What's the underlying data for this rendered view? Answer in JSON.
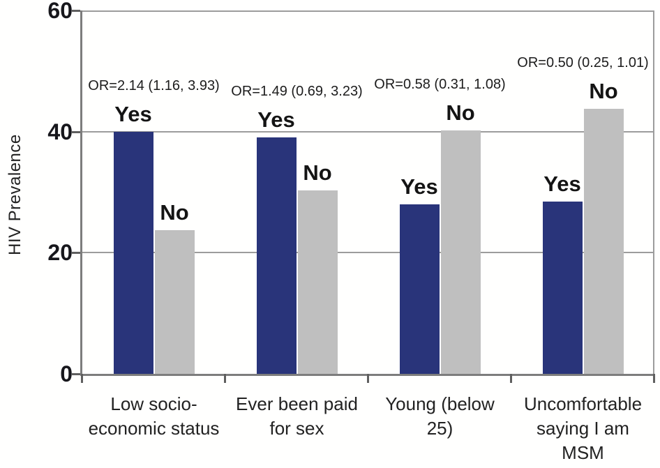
{
  "chart_data": {
    "type": "bar",
    "title": "",
    "xlabel": "",
    "ylabel": "HIV Prevalence",
    "ylim": [
      0,
      60
    ],
    "yticks": [
      0,
      20,
      40,
      60
    ],
    "ytick_labels": [
      "0",
      "20",
      "40",
      "60"
    ],
    "grid": true,
    "legend_position": "none",
    "bar_group_labels": [
      "Yes",
      "No"
    ],
    "categories": [
      "Low socio-economic status",
      "Ever been paid for sex",
      "Young (below 25)",
      "Uncomfortable saying I am MSM"
    ],
    "category_label_lines": [
      [
        "Low socio-",
        "economic status"
      ],
      [
        "Ever been paid",
        "for sex"
      ],
      [
        "Young (below",
        "25)"
      ],
      [
        "Uncomfortable",
        "saying I am",
        "MSM"
      ]
    ],
    "series": [
      {
        "name": "Yes",
        "color": "#29347a",
        "values": [
          40,
          39,
          28,
          28.5
        ]
      },
      {
        "name": "No",
        "color": "#bfbfbf",
        "values": [
          23.7,
          30.3,
          40.2,
          43.8
        ]
      }
    ],
    "annotations": [
      "OR=2.14 (1.16, 3.93)",
      "OR=1.49 (0.69, 3.23)",
      "OR=0.58 (0.31, 1.08)",
      "OR=0.50 (0.25, 1.01)"
    ]
  },
  "colors": {
    "yes_bar": "#29347a",
    "no_bar": "#bfbfbf",
    "gridline": "#9c9c9c",
    "axis": "#7d7d7d"
  }
}
